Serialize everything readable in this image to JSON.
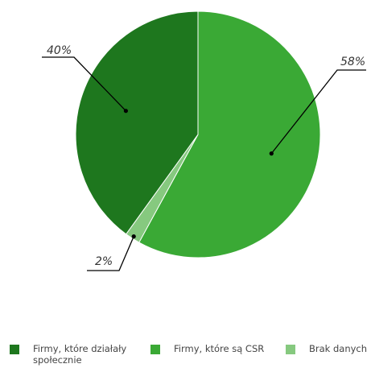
{
  "chart_data": {
    "type": "pie",
    "slices": [
      {
        "name": "Firmy, które są CSR",
        "value": 58,
        "label": "58%",
        "color": "#3aa935"
      },
      {
        "name": "Brak danych",
        "value": 2,
        "label": "2%",
        "color": "#86c97f"
      },
      {
        "name": "Firmy, które działały społecznie",
        "value": 40,
        "label": "40%",
        "color": "#1e771e"
      }
    ],
    "legend": {
      "placement": "bottom",
      "items": [
        {
          "label": "Firmy, które działały społecznie",
          "color": "#1e771e"
        },
        {
          "label": "Firmy, które są CSR",
          "color": "#3aa935"
        },
        {
          "label": "Brak danych",
          "color": "#86c97f"
        }
      ]
    }
  }
}
